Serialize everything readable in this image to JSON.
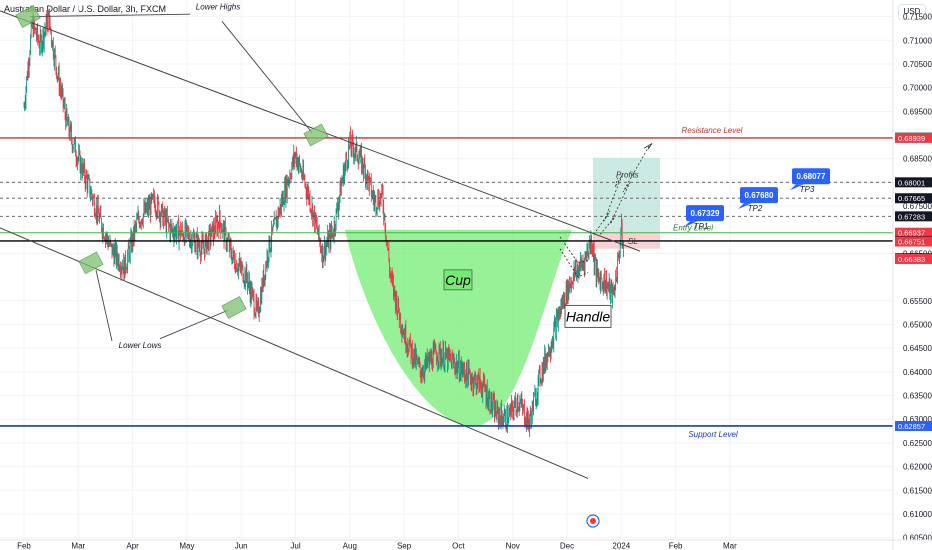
{
  "header": {
    "symbol_title": "Australian Dollar / U.S. Dollar, 3h, FXCM",
    "currency": "USD"
  },
  "chart_data": {
    "type": "candlestick",
    "x_labels": [
      "Feb",
      "Mar",
      "Apr",
      "May",
      "Jun",
      "Jul",
      "Aug",
      "Sep",
      "Oct",
      "Nov",
      "Dec",
      "2024",
      "Feb",
      "Mar"
    ],
    "ylim": [
      0.6045,
      0.7185
    ],
    "y_ticks": [
      "0.71500",
      "0.71000",
      "0.70500",
      "0.70000",
      "0.69500",
      "0.68500",
      "0.68000",
      "0.67500",
      "0.66500",
      "0.65500",
      "0.65000",
      "0.64500",
      "0.64000",
      "0.63500",
      "0.63000",
      "0.62500",
      "0.62000",
      "0.61500",
      "0.61000",
      "0.60500"
    ],
    "price_path": [
      [
        0,
        0.696
      ],
      [
        0.15,
        0.7135
      ],
      [
        0.3,
        0.709
      ],
      [
        0.45,
        0.715
      ],
      [
        0.6,
        0.704
      ],
      [
        0.8,
        0.692
      ],
      [
        1.0,
        0.685
      ],
      [
        1.2,
        0.679
      ],
      [
        1.4,
        0.672
      ],
      [
        1.6,
        0.666
      ],
      [
        1.85,
        0.662
      ],
      [
        2.1,
        0.672
      ],
      [
        2.4,
        0.676
      ],
      [
        2.7,
        0.67
      ],
      [
        3.0,
        0.669
      ],
      [
        3.3,
        0.666
      ],
      [
        3.6,
        0.672
      ],
      [
        3.85,
        0.664
      ],
      [
        4.1,
        0.66
      ],
      [
        4.3,
        0.652
      ],
      [
        4.5,
        0.666
      ],
      [
        4.75,
        0.676
      ],
      [
        5.0,
        0.686
      ],
      [
        5.25,
        0.677
      ],
      [
        5.5,
        0.665
      ],
      [
        5.7,
        0.67
      ],
      [
        5.85,
        0.68
      ],
      [
        6.0,
        0.688
      ],
      [
        6.15,
        0.686
      ],
      [
        6.3,
        0.682
      ],
      [
        6.45,
        0.676
      ],
      [
        6.6,
        0.677
      ],
      [
        6.75,
        0.66
      ],
      [
        7.0,
        0.648
      ],
      [
        7.3,
        0.64
      ],
      [
        7.6,
        0.644
      ],
      [
        7.9,
        0.642
      ],
      [
        8.2,
        0.639
      ],
      [
        8.45,
        0.637
      ],
      [
        8.7,
        0.631
      ],
      [
        8.9,
        0.63
      ],
      [
        9.1,
        0.634
      ],
      [
        9.3,
        0.629
      ],
      [
        9.5,
        0.639
      ],
      [
        9.7,
        0.646
      ],
      [
        9.9,
        0.654
      ],
      [
        10.1,
        0.66
      ],
      [
        10.3,
        0.663
      ],
      [
        10.45,
        0.668
      ],
      [
        10.55,
        0.66
      ],
      [
        10.7,
        0.659
      ],
      [
        10.85,
        0.656
      ],
      [
        10.95,
        0.664
      ],
      [
        11.0,
        0.67
      ],
      [
        11.05,
        0.664
      ]
    ],
    "lines": {
      "resistance": 0.68939,
      "support": 0.62857,
      "entry": 0.66937,
      "black_level": 0.66764,
      "tp1": 0.67283,
      "tp2": 0.67665,
      "tp3": 0.68001
    },
    "price_tags": [
      {
        "label": "0.68947",
        "value": 0.68947,
        "color": "#089981"
      },
      {
        "label": "0.68939",
        "value": 0.68939,
        "color": "#f23645"
      },
      {
        "label": "0.68001",
        "value": 0.68001,
        "color": "#131722"
      },
      {
        "label": "0.67665",
        "value": 0.67665,
        "color": "#131722"
      },
      {
        "label": "0.67283",
        "value": 0.67283,
        "color": "#131722"
      },
      {
        "label": "0.66937",
        "value": 0.66937,
        "color": "#f23645",
        "sub": "01:47:01"
      },
      {
        "label": "0.66764",
        "value": 0.66764,
        "color": "#131722"
      },
      {
        "label": "0.66751",
        "value": 0.66751,
        "color": "#f23645"
      },
      {
        "label": "0.66398",
        "value": 0.66398,
        "color": "#131722"
      },
      {
        "label": "0.66383",
        "value": 0.66383,
        "color": "#f23645"
      },
      {
        "label": "0.62857",
        "value": 0.62857,
        "color": "#2962ff"
      }
    ],
    "line_labels": {
      "resistance": "Resistance Level",
      "support": "Support Level",
      "entry": "Entry Level",
      "sl": "SL",
      "tp1": "TP1",
      "tp2": "TP2",
      "tp3": "TP3",
      "profits": "Profits"
    },
    "target_callouts": [
      {
        "label": "0.67329",
        "value": 0.67329
      },
      {
        "label": "0.67680",
        "value": 0.6768
      },
      {
        "label": "0.68077",
        "value": 0.68077
      }
    ],
    "annotations": {
      "lower_highs": "Lower Highs",
      "lower_lows": "Lower Lows",
      "cup": "Cup",
      "handle": "Handle"
    }
  },
  "colors": {
    "candle_up": "#089981",
    "candle_down": "#f23645",
    "resistance": "#d32f2f",
    "support": "#1e35c8",
    "entry": "#4caf50",
    "cup_fill": "#74ec74",
    "profit_zone": "#b9e3d9",
    "stop_zone": "#f7c9cc",
    "callout": "#2962ff"
  }
}
